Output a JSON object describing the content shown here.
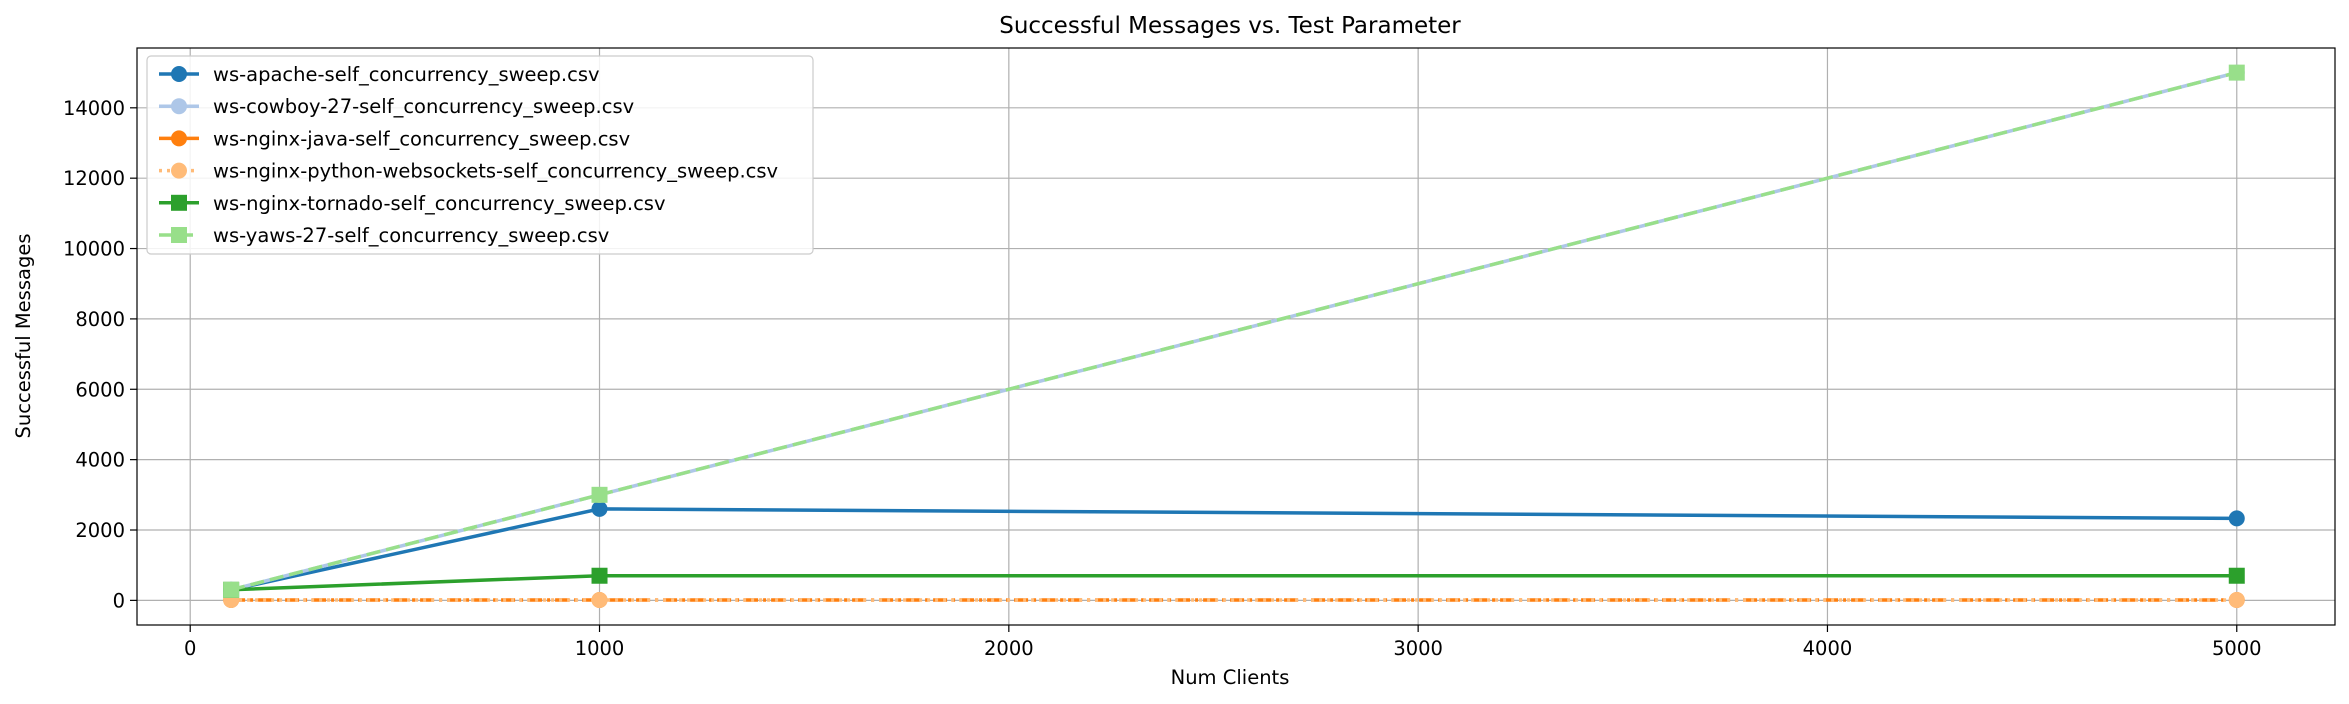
{
  "chart_data": {
    "type": "line",
    "title": "Successful Messages vs. Test Parameter",
    "xlabel": "Num Clients",
    "ylabel": "Successful Messages",
    "xlim": [
      -130,
      5240
    ],
    "ylim": [
      -700,
      15700
    ],
    "xticks": [
      0,
      1000,
      2000,
      3000,
      4000,
      5000
    ],
    "yticks": [
      0,
      2000,
      4000,
      6000,
      8000,
      10000,
      12000,
      14000
    ],
    "grid": true,
    "legend_position": "top-left",
    "series": [
      {
        "name": "ws-apache-self_concurrency_sweep.csv",
        "x": [
          100,
          1000,
          5000
        ],
        "y": [
          300,
          2600,
          2330
        ],
        "color": "#1f77b4",
        "dash": "solid",
        "marker": "circle"
      },
      {
        "name": "ws-cowboy-27-self_concurrency_sweep.csv",
        "x": [
          100,
          1000,
          5000
        ],
        "y": [
          300,
          3000,
          15000
        ],
        "color": "#aec7e8",
        "dash": "solid",
        "marker": "circle"
      },
      {
        "name": "ws-nginx-java-self_concurrency_sweep.csv",
        "x": [
          100,
          1000,
          5000
        ],
        "y": [
          10,
          10,
          10
        ],
        "color": "#ff7f0e",
        "dash": "dashdot",
        "marker": "circle"
      },
      {
        "name": "ws-nginx-python-websockets-self_concurrency_sweep.csv",
        "x": [
          100,
          1000,
          5000
        ],
        "y": [
          10,
          10,
          10
        ],
        "color": "#ffbb78",
        "dash": "dotted",
        "marker": "circle"
      },
      {
        "name": "ws-nginx-tornado-self_concurrency_sweep.csv",
        "x": [
          100,
          1000,
          5000
        ],
        "y": [
          300,
          700,
          700
        ],
        "color": "#2ca02c",
        "dash": "solid",
        "marker": "square"
      },
      {
        "name": "ws-yaws-27-self_concurrency_sweep.csv",
        "x": [
          100,
          1000,
          5000
        ],
        "y": [
          300,
          3000,
          15000
        ],
        "color": "#98df8a",
        "dash": "dashed",
        "marker": "square"
      }
    ]
  }
}
